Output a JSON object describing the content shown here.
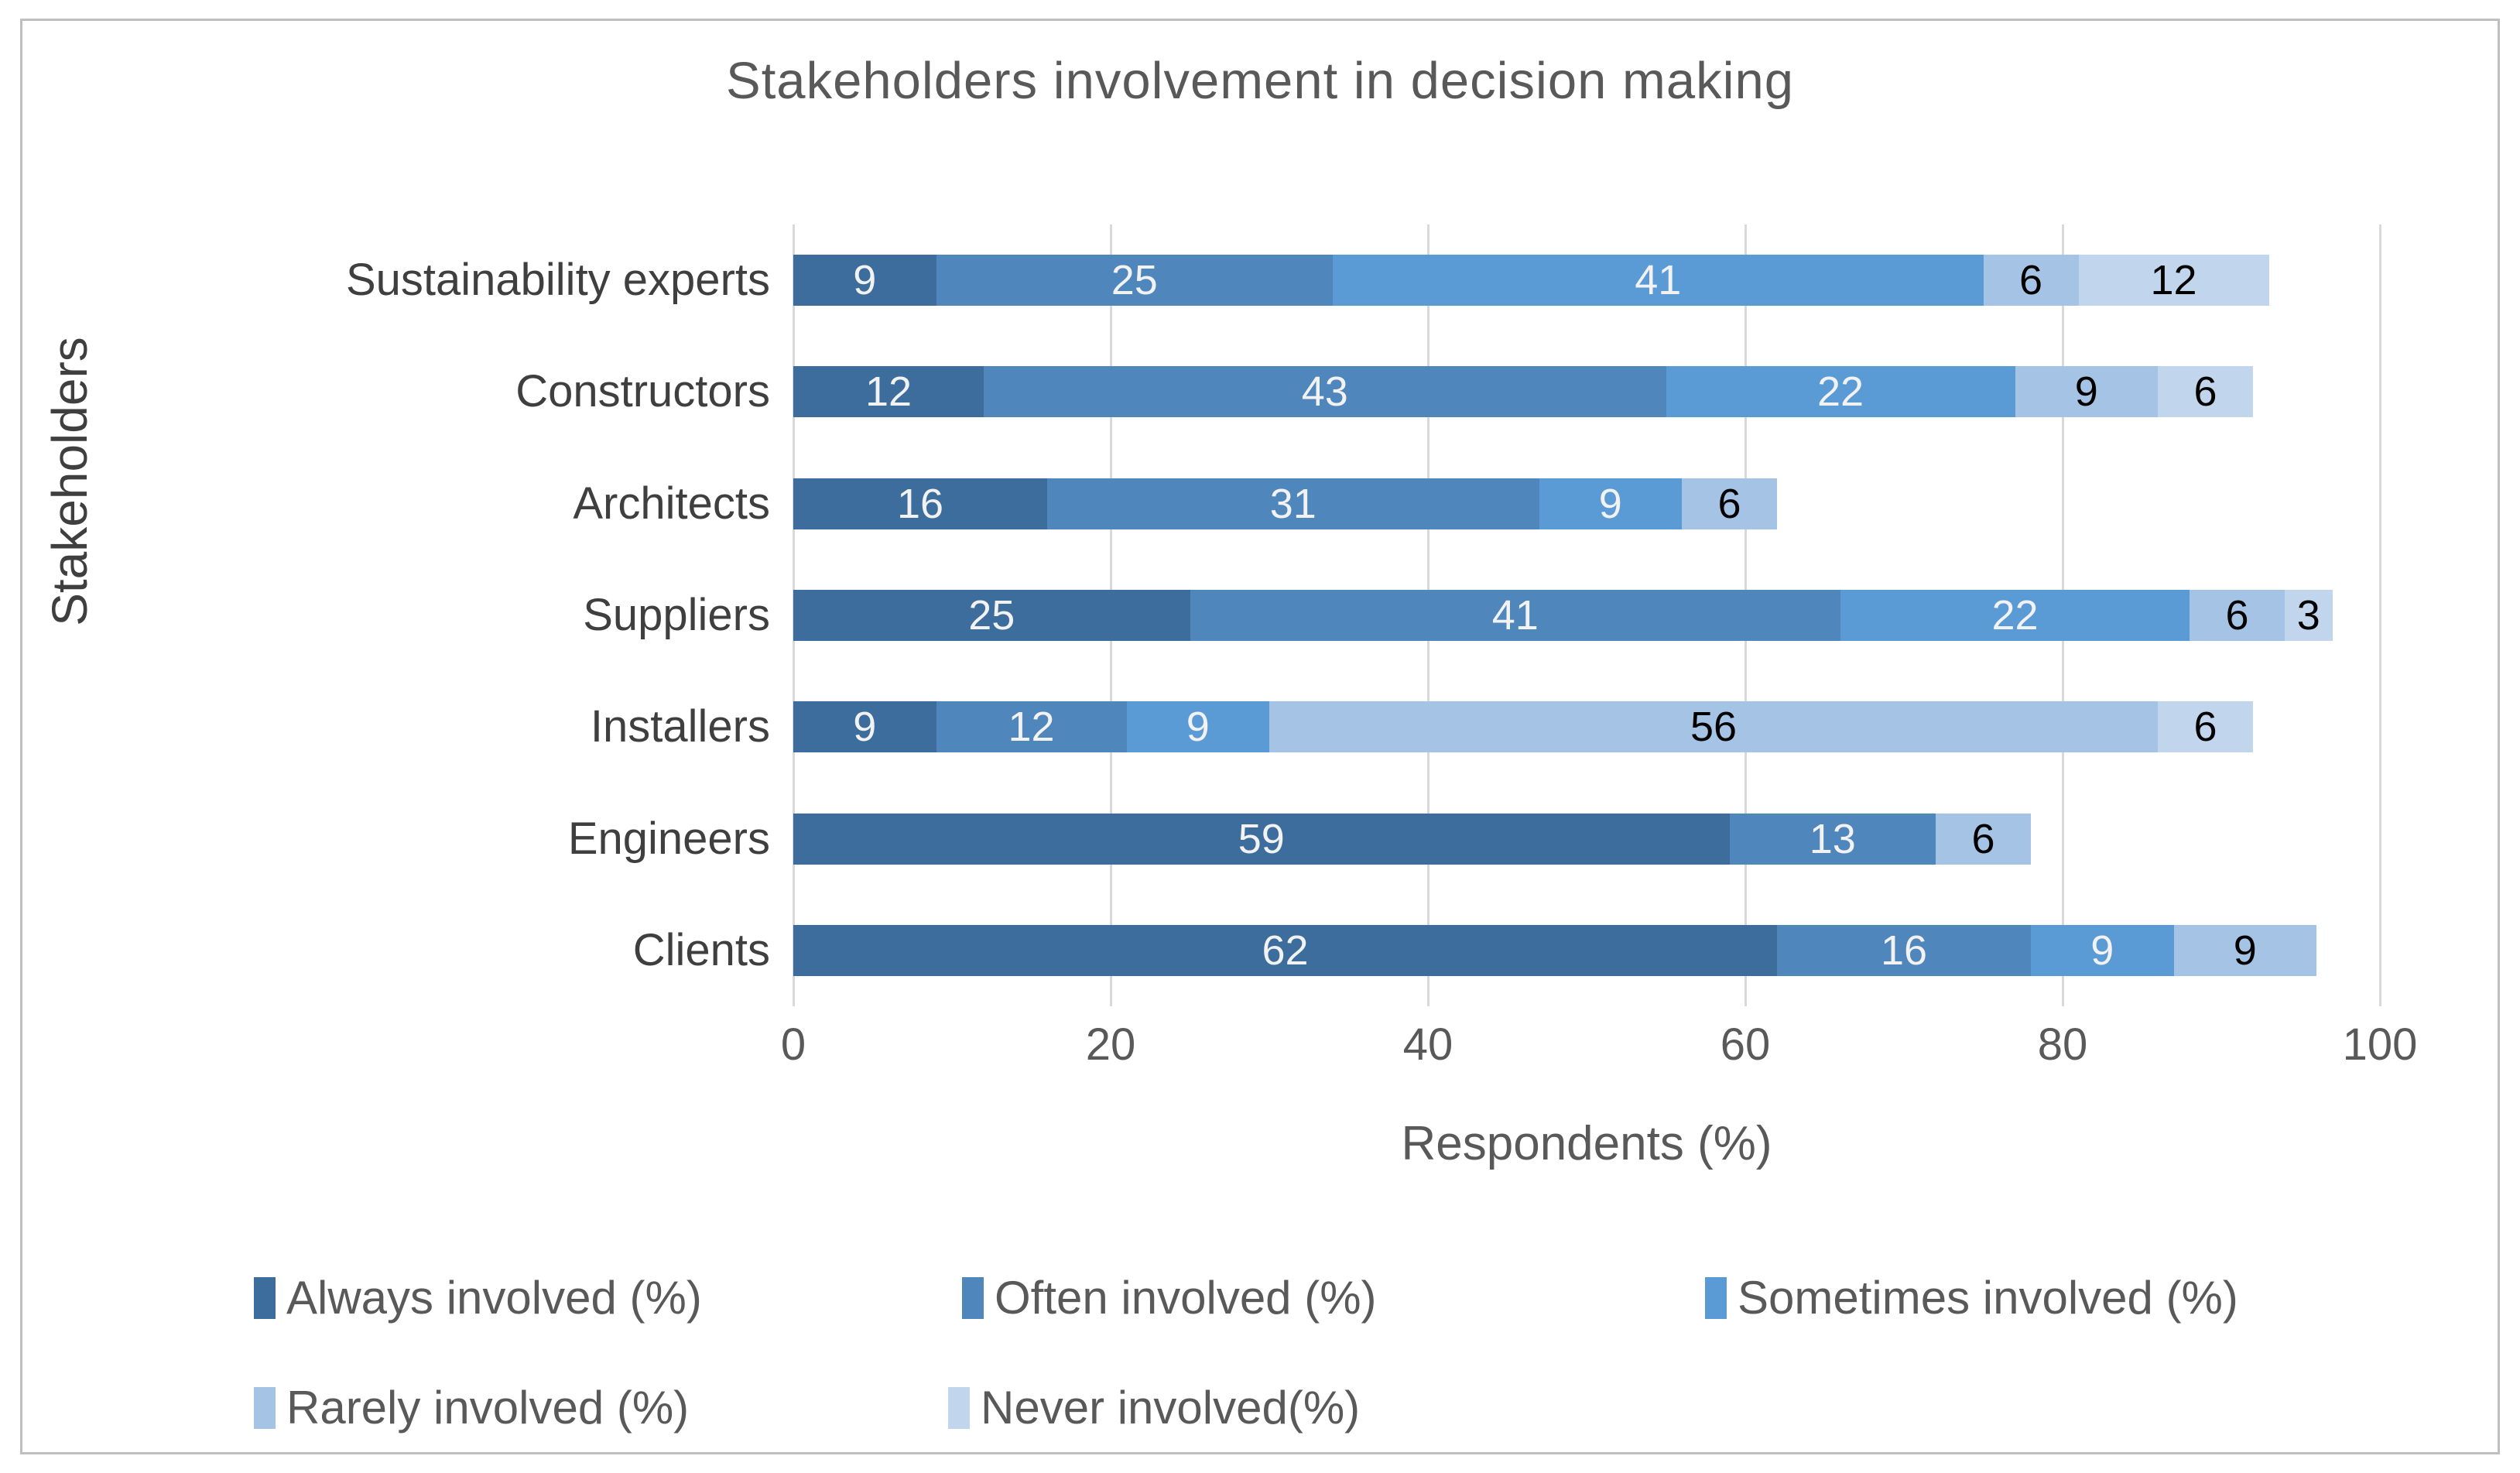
{
  "chart_data": {
    "type": "bar",
    "orientation": "horizontal",
    "stacked": true,
    "title": "Stakeholders involvement in decision making",
    "xlabel": "Respondents (%)",
    "ylabel": "Stakeholders",
    "xlim": [
      0,
      100
    ],
    "xticks": [
      0,
      20,
      40,
      60,
      80,
      100
    ],
    "grid": "vertical-major",
    "legend_position": "bottom",
    "categories": [
      "Sustainability experts",
      "Constructors",
      "Architects",
      "Suppliers",
      "Installers",
      "Engineers",
      "Clients"
    ],
    "series": [
      {
        "name": "Always involved (%)",
        "color": "#3C6D9D",
        "label_color": "#F2F2F2",
        "values": [
          9,
          12,
          16,
          25,
          9,
          59,
          62
        ]
      },
      {
        "name": "Often involved (%)",
        "color": "#4F86BC",
        "label_color": "#F2F2F2",
        "values": [
          25,
          43,
          31,
          41,
          12,
          13,
          16
        ]
      },
      {
        "name": "Sometimes involved (%)",
        "color": "#5B9BD5",
        "label_color": "#F2F2F2",
        "values": [
          41,
          22,
          9,
          22,
          9,
          0,
          9
        ]
      },
      {
        "name": "Rarely involved (%)",
        "color": "#A5C3E4",
        "label_color": "#000000",
        "values": [
          6,
          9,
          6,
          6,
          56,
          6,
          9
        ]
      },
      {
        "name": "Never involved(%)",
        "color": "#C1D5EC",
        "label_color": "#000000",
        "values": [
          12,
          6,
          0,
          3,
          6,
          0,
          0
        ]
      }
    ]
  },
  "colors": {
    "frame_border": "#BFBFBF",
    "gridline": "#D9D9D9",
    "title_text": "#595959",
    "axis_text": "#595959",
    "category_text": "#3F3F3F"
  }
}
